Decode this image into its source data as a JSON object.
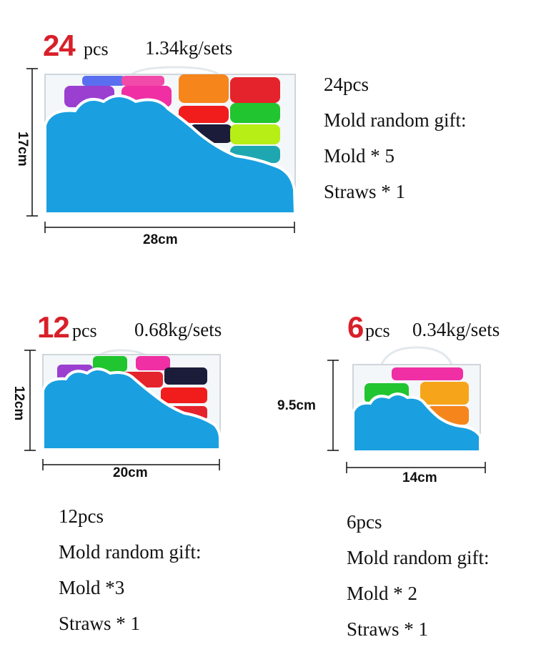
{
  "set_24": {
    "count": "24",
    "pcs": "pcs",
    "weight": "1.34kg/sets",
    "height": "17cm",
    "width": "28cm",
    "lines": [
      "24pcs",
      "Mold random gift:",
      "Mold * 5",
      "Straws * 1"
    ]
  },
  "set_12": {
    "count": "12",
    "pcs": "pcs",
    "weight": "0.68kg/sets",
    "height": "12cm",
    "width": "20cm",
    "lines": [
      "12pcs",
      "Mold random gift:",
      "Mold *3",
      "Straws * 1"
    ]
  },
  "set_6": {
    "count": "6",
    "pcs": "pcs",
    "weight": "0.34kg/sets",
    "height": "9.5cm",
    "width": "14cm",
    "lines": [
      "6pcs",
      "Mold random gift:",
      "Mold * 2",
      "Straws * 1"
    ]
  },
  "colors": {
    "count_red": "#d8202a",
    "cloud_blue": "#1aa0e0",
    "box_outline": "#cfd6dc"
  }
}
